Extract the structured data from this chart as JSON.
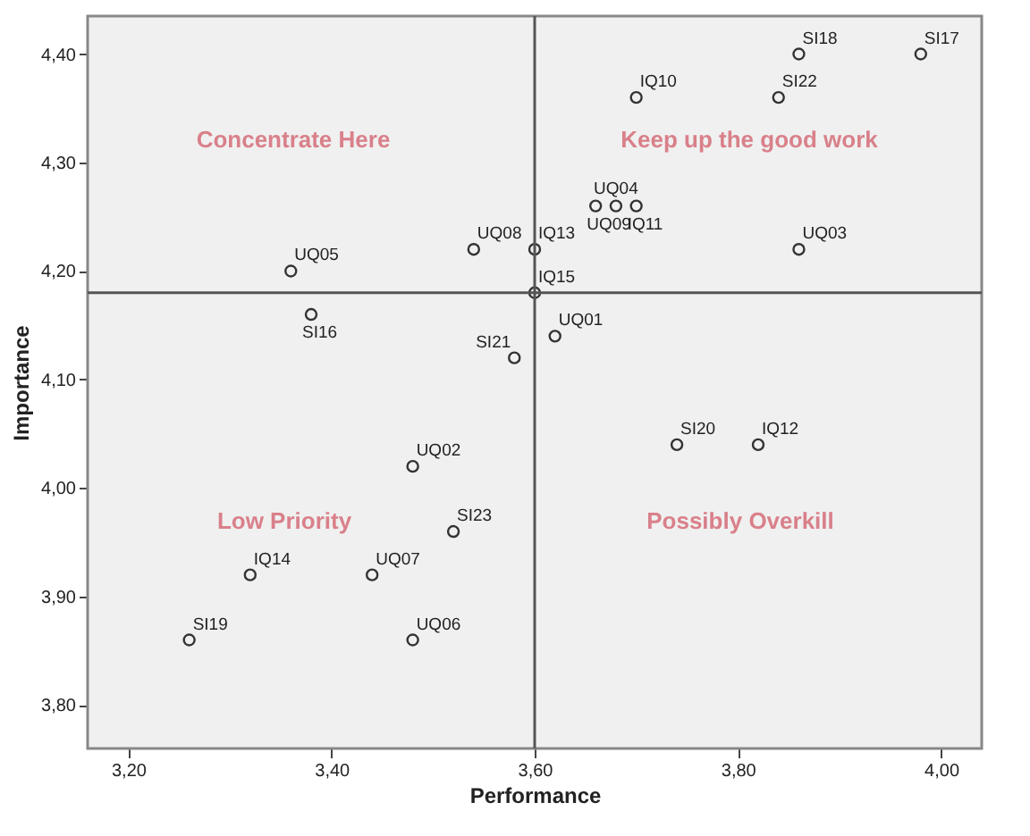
{
  "chart_data": {
    "type": "scatter",
    "xlabel": "Performance",
    "ylabel": "Importance",
    "x": [
      3.98,
      3.86,
      3.84,
      3.7,
      3.66,
      3.68,
      3.7,
      3.86,
      3.6,
      3.6,
      3.54,
      3.36,
      3.38,
      3.62,
      3.58,
      3.48,
      3.52,
      3.32,
      3.44,
      3.26,
      3.48,
      3.74,
      3.82
    ],
    "series": [
      {
        "color": "#333333",
        "values": [
          4.4,
          4.4,
          4.36,
          4.36,
          4.26,
          4.26,
          4.26,
          4.22,
          4.22,
          4.18,
          4.22,
          4.2,
          4.16,
          4.14,
          4.12,
          4.02,
          3.96,
          3.92,
          3.92,
          3.86,
          3.86,
          4.04,
          4.04
        ],
        "value_labels": [
          "SI17",
          "SI18",
          "SI22",
          "IQ10",
          "UQ09",
          "UQ04",
          "IQ11",
          "UQ03",
          "IQ13",
          "IQ15",
          "UQ08",
          "UQ05",
          "SI16",
          "UQ01",
          "SI21",
          "UQ02",
          "SI23",
          "IQ14",
          "UQ07",
          "SI19",
          "UQ06",
          "SI20",
          "IQ12"
        ]
      }
    ],
    "marker": "circle",
    "xlim": [
      3.16,
      4.04
    ],
    "ylim": [
      3.76,
      4.435
    ],
    "xticks": [
      {
        "value": 3.2,
        "label": "3,20"
      },
      {
        "value": 3.4,
        "label": "3,40"
      },
      {
        "value": 3.6,
        "label": "3,60"
      },
      {
        "value": 3.8,
        "label": "3,80"
      },
      {
        "value": 4.0,
        "label": "4,00"
      }
    ],
    "yticks": [
      {
        "value": 3.8,
        "label": "3,80"
      },
      {
        "value": 3.9,
        "label": "3,90"
      },
      {
        "value": 4.0,
        "label": "4,00"
      },
      {
        "value": 4.1,
        "label": "4,10"
      },
      {
        "value": 4.2,
        "label": "4,20"
      },
      {
        "value": 4.3,
        "label": "4,30"
      },
      {
        "value": 4.4,
        "label": "4,40"
      }
    ],
    "ref_lines": [
      {
        "axis": "x",
        "value": 3.6,
        "color": "#555555"
      },
      {
        "axis": "y",
        "value": 4.18,
        "color": "#555555"
      }
    ],
    "annotations": [
      "Concentrate Here",
      "Keep up the good work",
      "Low Priority",
      "Possibly Overkill"
    ]
  }
}
